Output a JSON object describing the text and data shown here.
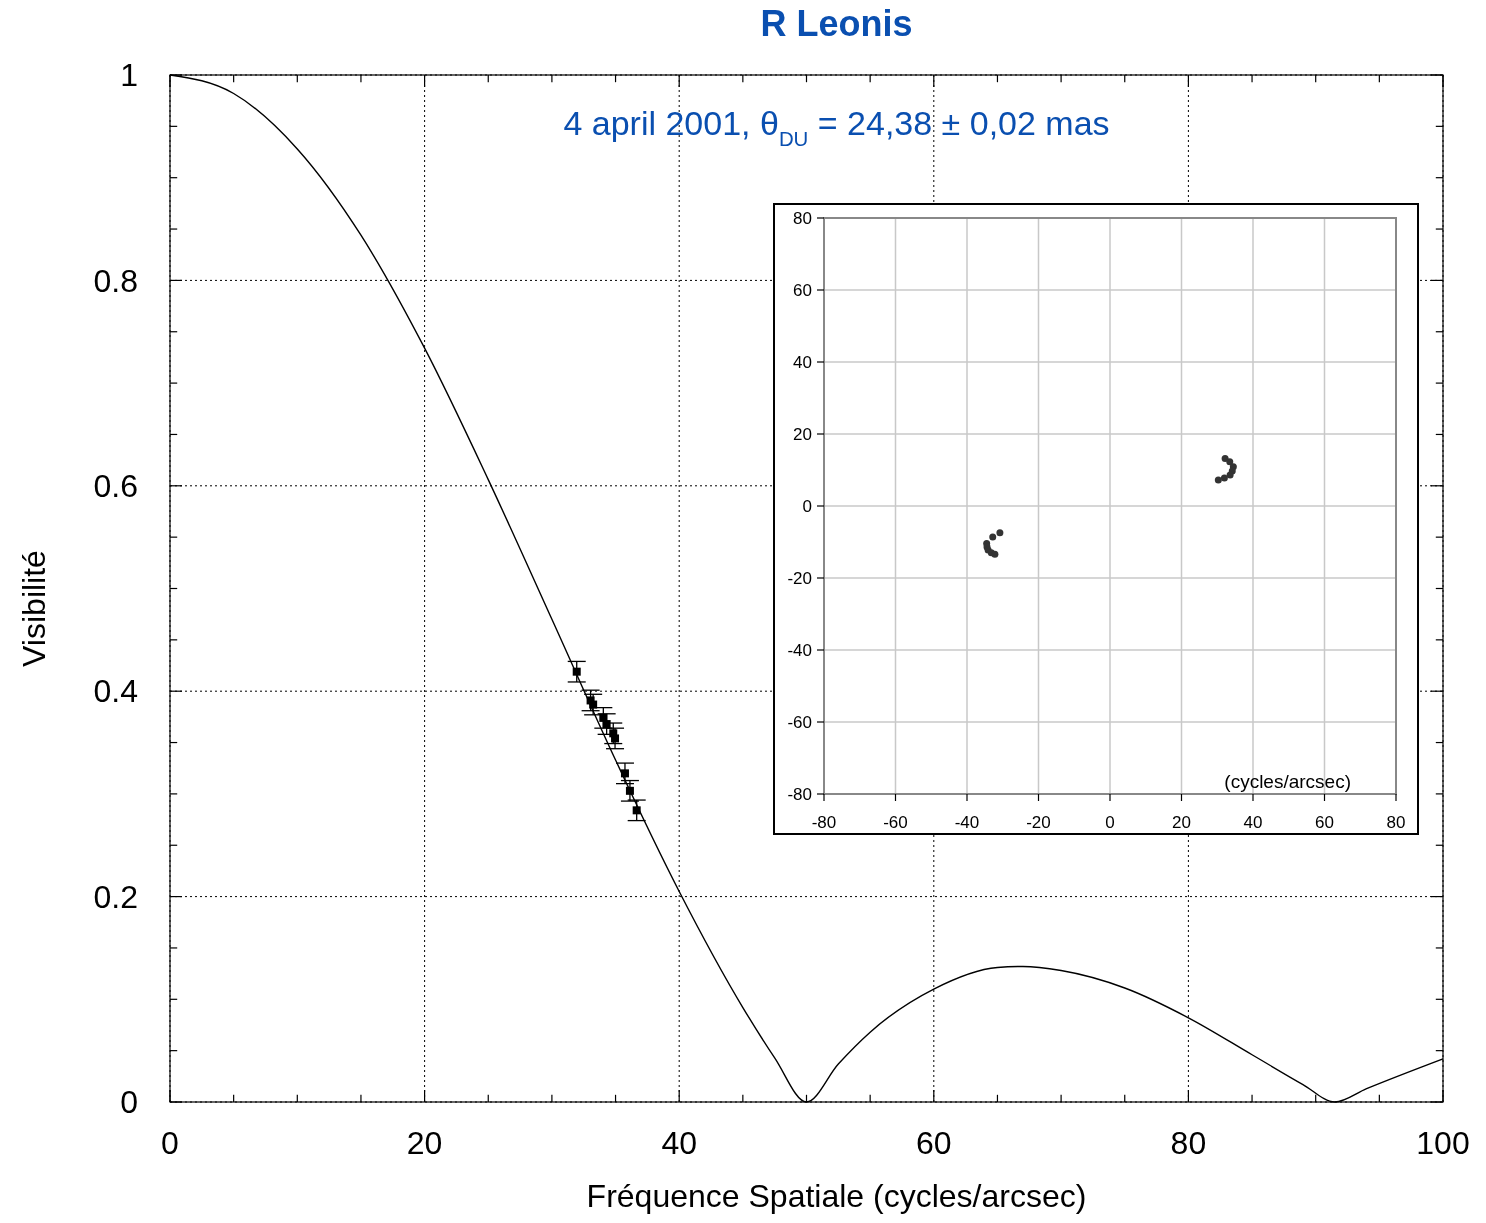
{
  "chart_data": [
    {
      "type": "line",
      "title": "R Leonis",
      "subtitle": "4 april 2001, θ$_{DU}$ = 24,38 ± 0,02 mas",
      "xlabel": "Fréquence Spatiale (cycles/arcsec)",
      "ylabel": "Visibilité",
      "xlim": [
        0,
        100
      ],
      "ylim": [
        0,
        1
      ],
      "xticks": [
        0,
        {
          "value": 5,
          "label": null
        },
        {
          "value": 10,
          "label": null
        },
        {
          "value": 15,
          "label": null
        },
        20,
        {
          "value": 25,
          "label": null
        },
        {
          "value": 30,
          "label": null
        },
        {
          "value": 35,
          "label": null
        },
        40,
        {
          "value": 45,
          "label": null
        },
        {
          "value": 50,
          "label": null
        },
        {
          "value": 55,
          "label": null
        },
        60,
        {
          "value": 65,
          "label": null
        },
        {
          "value": 70,
          "label": null
        },
        {
          "value": 75,
          "label": null
        },
        80,
        {
          "value": 85,
          "label": null
        },
        {
          "value": 90,
          "label": null
        },
        {
          "value": 95,
          "label": null
        },
        100
      ],
      "yticks": [
        0,
        {
          "value": 0.05,
          "label": null
        },
        {
          "value": 0.1,
          "label": null
        },
        {
          "value": 0.15,
          "label": null
        },
        0.2,
        {
          "value": 0.25,
          "label": null
        },
        {
          "value": 0.3,
          "label": null
        },
        {
          "value": 0.35,
          "label": null
        },
        0.4,
        {
          "value": 0.45,
          "label": null
        },
        {
          "value": 0.5,
          "label": null
        },
        {
          "value": 0.55,
          "label": null
        },
        0.6,
        {
          "value": 0.65,
          "label": null
        },
        {
          "value": 0.7,
          "label": null
        },
        {
          "value": 0.75,
          "label": null
        },
        0.8,
        {
          "value": 0.85,
          "label": null
        },
        {
          "value": 0.9,
          "label": null
        },
        {
          "value": 0.95,
          "label": null
        },
        1
      ],
      "grid": true,
      "series": [
        {
          "type": "line",
          "color": "#000000",
          "marker": "none",
          "x": [
            0,
            5,
            10,
            15,
            20,
            25,
            30,
            35,
            40,
            45,
            47.5,
            50,
            52.5,
            55,
            60,
            65,
            67,
            70,
            75,
            80,
            85,
            89,
            91.5,
            94,
            100
          ],
          "values": [
            1,
            0.982,
            0.928,
            0.844,
            0.734,
            0.606,
            0.47,
            0.333,
            0.205,
            0.092,
            0.043,
            0,
            0.037,
            0.068,
            0.11,
            0.131,
            0.132,
            0.128,
            0.111,
            0.082,
            0.046,
            0.017,
            0,
            0.013,
            0.042
          ]
        },
        {
          "type": "scatter",
          "color": "#000000",
          "marker": "square",
          "x": [
            31.95,
            33.04,
            33.24,
            34.04,
            34.3,
            34.82,
            34.96,
            35.74,
            36.13,
            36.66
          ],
          "values": [
            0.419,
            0.391,
            0.387,
            0.374,
            0.368,
            0.359,
            0.354,
            0.32,
            0.303,
            0.284
          ],
          "errors": [
            0.01,
            0.01,
            0.01,
            0.01,
            0.01,
            0.01,
            0.01,
            0.01,
            0.01,
            0.01
          ]
        }
      ]
    },
    {
      "type": "scatter",
      "xlabel": "(cycles/arcsec)",
      "xlim": [
        -80,
        80
      ],
      "ylim": [
        -80,
        80
      ],
      "xticks": [
        -80,
        -60,
        -40,
        -20,
        0,
        20,
        40,
        60,
        80
      ],
      "yticks": [
        -80,
        -60,
        -40,
        -20,
        0,
        20,
        40,
        60,
        80
      ],
      "grid": true,
      "series": [
        {
          "color": "#333333",
          "marker": "circle",
          "x": [
            32.2,
            33.5,
            34.5,
            34.2,
            33.6,
            32,
            30.3,
            -30.8,
            -32.8,
            -34.5,
            -34.4,
            -34.1,
            -33.2,
            -32.2
          ],
          "values": [
            13.2,
            12.3,
            10.9,
            9.7,
            8.6,
            7.8,
            7.2,
            -7.4,
            -8.6,
            -10.4,
            -11.4,
            -12.2,
            -13,
            -13.4
          ]
        }
      ]
    }
  ]
}
